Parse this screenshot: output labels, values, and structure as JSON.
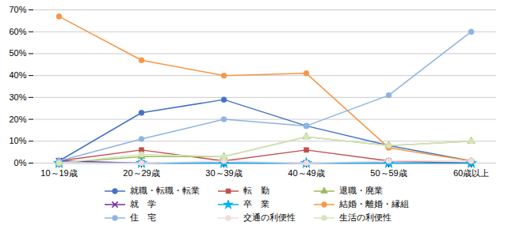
{
  "chart_data": {
    "type": "line",
    "categories": [
      "10～19歳",
      "20～29歳",
      "30～39歳",
      "40～49歳",
      "50～59歳",
      "60歳以上"
    ],
    "series": [
      {
        "name": "就職・転職・転業",
        "color": "#4472C4",
        "marker": "circle",
        "values": [
          1,
          23,
          29,
          17,
          8,
          1
        ]
      },
      {
        "name": "転　勤",
        "color": "#C0504D",
        "marker": "square",
        "values": [
          1,
          6,
          1,
          6,
          1,
          0
        ]
      },
      {
        "name": "退職・廃業",
        "color": "#9BBB59",
        "marker": "triangle",
        "values": [
          0,
          3,
          3,
          12,
          8,
          10
        ]
      },
      {
        "name": "就　学",
        "color": "#7030A0",
        "marker": "x",
        "values": [
          1,
          0,
          0,
          0,
          0,
          0
        ]
      },
      {
        "name": "卒　業",
        "color": "#00B0F0",
        "marker": "star",
        "values": [
          0,
          0,
          0,
          0,
          0,
          0
        ]
      },
      {
        "name": "結婚・離婚・縁組",
        "color": "#F79646",
        "marker": "circle",
        "values": [
          67,
          47,
          40,
          41,
          7,
          1
        ]
      },
      {
        "name": "住　宅",
        "color": "#8DB4E2",
        "marker": "circle",
        "values": [
          1,
          11,
          20,
          17,
          31,
          60
        ]
      },
      {
        "name": "交通の利便性",
        "color": "#F2DCDB",
        "marker": "circle",
        "values": [
          0,
          0,
          1,
          0,
          1,
          1
        ]
      },
      {
        "name": "生活の利便性",
        "color": "#D7E4BC",
        "marker": "circle",
        "values": [
          0,
          4,
          3,
          12,
          8,
          10
        ]
      }
    ],
    "ylim": [
      0,
      70
    ],
    "yticks": [
      {
        "value": 0,
        "label": "0%"
      },
      {
        "value": 10,
        "label": "10%"
      },
      {
        "value": 20,
        "label": "20%"
      },
      {
        "value": 30,
        "label": "30%"
      },
      {
        "value": 40,
        "label": "40%"
      },
      {
        "value": 50,
        "label": "50%"
      },
      {
        "value": 60,
        "label": "60%"
      },
      {
        "value": 70,
        "label": "70%"
      }
    ],
    "grid": true,
    "legend": "bottom"
  }
}
